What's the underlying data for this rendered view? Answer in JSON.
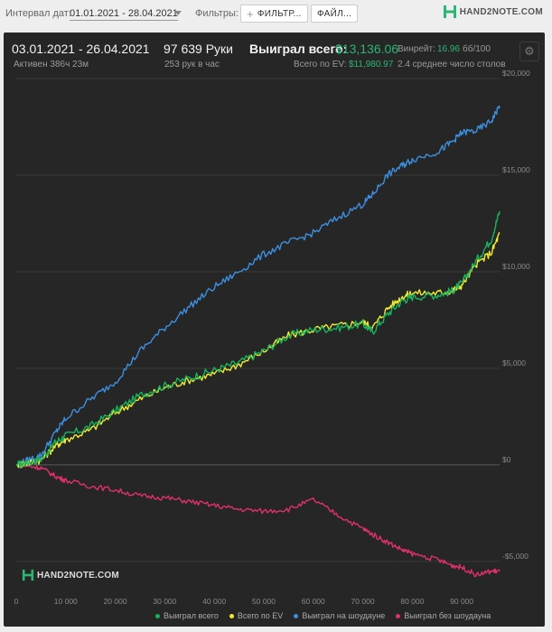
{
  "toolbar": {
    "interval_label": "Интервал дат:",
    "date_range": "01.01.2021 - 28.04.2021",
    "filters_label": "Фильтры:",
    "filters_button": "ФИЛЬТР...",
    "files_button": "ФАЙЛ...",
    "brand": "HAND2NOTE.COM"
  },
  "stats": {
    "period": "03.01.2021 - 26.04.2021",
    "active": "Активен 386ч 23м",
    "hands": "97 639 Руки",
    "hands_per_hour": "253 рук в час",
    "won_total_label": "Выиграл всего:",
    "won_total_value": "$13,136.06",
    "ev_label": "Всего по EV:",
    "ev_value": "$11,980.97",
    "winrate_label": "Винрейт:",
    "winrate_value": "16.96",
    "winrate_unit": "бб/100",
    "tables": "2.4 среднее число столов"
  },
  "watermark": "HAND2NOTE.COM",
  "colors": {
    "won_total": "#19b35e",
    "ev": "#f2ea2e",
    "showdown": "#3c8fe0",
    "non_showdown": "#e0306a"
  },
  "chart_data": {
    "type": "line",
    "xlim": [
      0,
      97639
    ],
    "ylim": [
      -6500,
      20000
    ],
    "x_ticks": [
      0,
      10000,
      20000,
      30000,
      40000,
      50000,
      60000,
      70000,
      80000,
      90000
    ],
    "x_tick_labels": [
      "0",
      "10 000",
      "20 000",
      "30 000",
      "40 000",
      "50 000",
      "60 000",
      "70 000",
      "80 000",
      "90 000"
    ],
    "y_ticks": [
      -5000,
      0,
      5000,
      10000,
      15000,
      20000
    ],
    "y_tick_labels": [
      "-$5,000",
      "$0",
      "$5,000",
      "$10,000",
      "$15,000",
      "$20,000"
    ],
    "grid": true,
    "legend_position": "bottom-right",
    "x": [
      0,
      2000,
      5000,
      8000,
      10000,
      15000,
      20000,
      25000,
      30000,
      35000,
      40000,
      45000,
      50000,
      55000,
      60000,
      65000,
      70000,
      72000,
      75000,
      78000,
      80000,
      85000,
      88000,
      90000,
      93000,
      96000,
      97639
    ],
    "series": [
      {
        "name": "Выиграл всего",
        "color": "#19b35e",
        "values": [
          0,
          100,
          300,
          1200,
          1500,
          2000,
          2800,
          3600,
          4100,
          4500,
          4900,
          5300,
          5900,
          6700,
          7000,
          7100,
          7300,
          6900,
          7800,
          8500,
          8700,
          8800,
          9000,
          9400,
          10600,
          11700,
          13136
        ]
      },
      {
        "name": "Всего по EV",
        "color": "#f2ea2e",
        "values": [
          0,
          80,
          250,
          1000,
          1300,
          1800,
          2700,
          3400,
          4000,
          4400,
          4700,
          5200,
          5900,
          6700,
          7000,
          7200,
          7400,
          7100,
          8100,
          8700,
          8900,
          8900,
          9000,
          9300,
          10400,
          11000,
          11981
        ]
      },
      {
        "name": "Выиграл на шоудауне",
        "color": "#3c8fe0",
        "values": [
          0,
          200,
          500,
          1700,
          2400,
          3400,
          4300,
          5900,
          7100,
          8200,
          9200,
          10000,
          10900,
          11500,
          12000,
          12800,
          13500,
          14000,
          15000,
          15500,
          15800,
          16200,
          16700,
          17200,
          17300,
          17800,
          18600
        ]
      },
      {
        "name": "Выиграл без шоудауна",
        "color": "#e0306a",
        "values": [
          0,
          -50,
          -150,
          -600,
          -800,
          -1100,
          -1300,
          -1600,
          -1700,
          -1900,
          -2100,
          -2300,
          -2400,
          -2300,
          -1800,
          -2600,
          -3300,
          -3600,
          -4000,
          -4400,
          -4600,
          -4900,
          -5200,
          -5300,
          -5700,
          -5500,
          -5500
        ]
      }
    ]
  }
}
